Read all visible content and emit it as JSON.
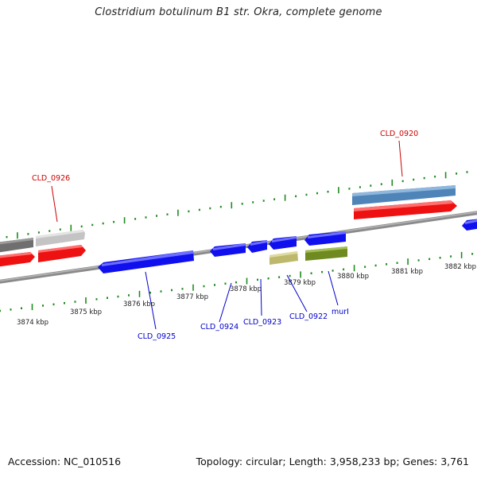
{
  "title": "Clostridium botulinum B1 str. Okra, complete genome",
  "footer": {
    "accession": "Accession: NC_010516",
    "summary": "Topology: circular; Length: 3,958,233 bp; Genes: 3,761"
  },
  "ruler_labels": [
    "3874 kbp",
    "3875 kbp",
    "3876 kbp",
    "3877 kbp",
    "3878 kbp",
    "3879 kbp",
    "3880 kbp",
    "3881 kbp",
    "3882 kbp"
  ],
  "gene_labels": {
    "top": [
      "CLD_0926",
      "CLD_0920"
    ],
    "bottom": [
      "CLD_0925",
      "CLD_0924",
      "CLD_0923",
      "CLD_0922",
      "murI"
    ]
  },
  "colors": {
    "forward_label": "#cc0000",
    "reverse_label": "#0000cc",
    "cds_blue": "#1010ee",
    "cds_red": "#ee1111",
    "cds_steelblue": "#4f84b8",
    "cds_olive": "#6e8a20",
    "cds_khaki": "#bdb86c",
    "cds_grey": "#6f6f6f",
    "cds_lightgrey": "#c4c4c4",
    "tick_green": "#1f8a1f",
    "backbone": "#8a8a8a"
  }
}
